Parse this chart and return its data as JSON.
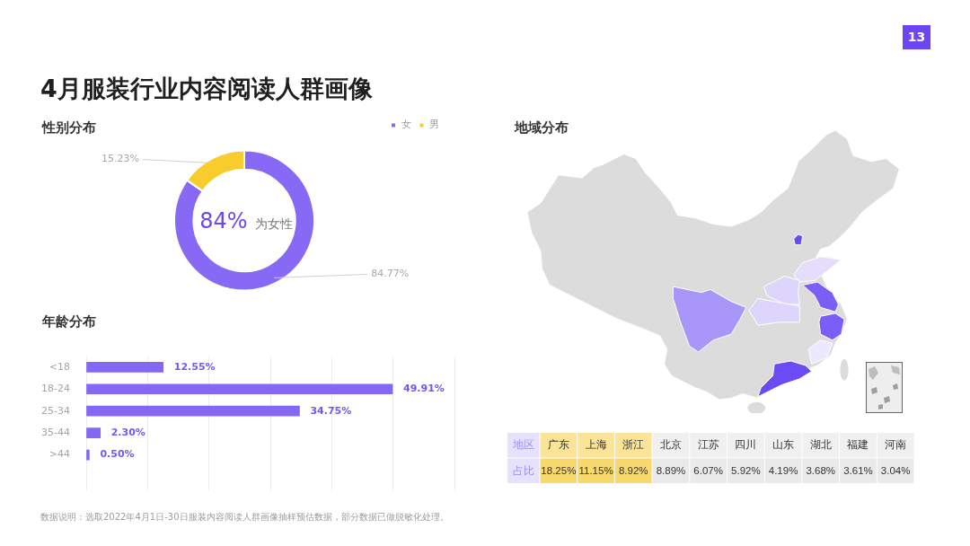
{
  "chart_data": [
    {
      "type": "other",
      "title": "4月服装行业内容阅读人群画像",
      "annotations": [
        "13"
      ]
    },
    {
      "type": "donut",
      "title": "性别分布",
      "categories": [
        "女",
        "男"
      ],
      "values": [
        84.77,
        15.23
      ],
      "colors": [
        "#8769f6",
        "#f8cc2c"
      ],
      "value_labels": [
        "84.77%",
        "15.23%"
      ],
      "annotations": [
        "84%",
        "为女性"
      ],
      "legend": "top right"
    },
    {
      "type": "bar",
      "title": "年龄分布",
      "orientation": "horizontal",
      "categories": [
        "<18",
        "18-24",
        "25-34",
        "35-44",
        ">44"
      ],
      "values": [
        12.55,
        49.91,
        34.75,
        2.3,
        0.5
      ],
      "color": "#8468f4",
      "value_labels": [
        "12.55%",
        "49.91%",
        "34.75%",
        "2.30%",
        "0.50%"
      ],
      "xlim": [
        0,
        60
      ],
      "xticks": [
        {
          "value": 0,
          "label": null
        },
        {
          "value": 10,
          "label": null
        },
        {
          "value": 20,
          "label": null
        },
        {
          "value": 30,
          "label": null
        },
        {
          "value": 40,
          "label": null
        },
        {
          "value": 50,
          "label": null
        },
        {
          "value": 60,
          "label": null
        }
      ],
      "grid": "x",
      "tick_labels": "y"
    },
    {
      "type": "heatmap",
      "title": "地域分布",
      "xlabel": "地区",
      "categories": [
        "广东",
        "上海",
        "浙江",
        "北京",
        "江苏",
        "四川",
        "山东",
        "湖北",
        "福建",
        "河南"
      ],
      "y_categories": [
        "占比"
      ],
      "cells": [
        [
          18.25,
          11.15,
          8.92,
          8.89,
          6.07,
          5.92,
          4.19,
          3.68,
          3.61,
          3.04
        ]
      ],
      "cell_labels": [
        [
          "18.25%",
          "11.15%",
          "8.92%",
          "8.89%",
          "6.07%",
          "5.92%",
          "4.19%",
          "3.68%",
          "3.61%",
          "3.04%"
        ]
      ],
      "colors": [
        "#f9d86c",
        "#f9d86c",
        "#f9d86c",
        "#eaeaea",
        "#eaeaea",
        "#eaeaea",
        "#eaeaea",
        "#eaeaea",
        "#eaeaea",
        "#eaeaea"
      ]
    },
    {
      "type": "other",
      "annotations": [
        "数据说明：选取2022年4月1日-30日服装内容阅读人群画像抽样预估数据，部分数据已做脱敏化处理。"
      ]
    }
  ]
}
